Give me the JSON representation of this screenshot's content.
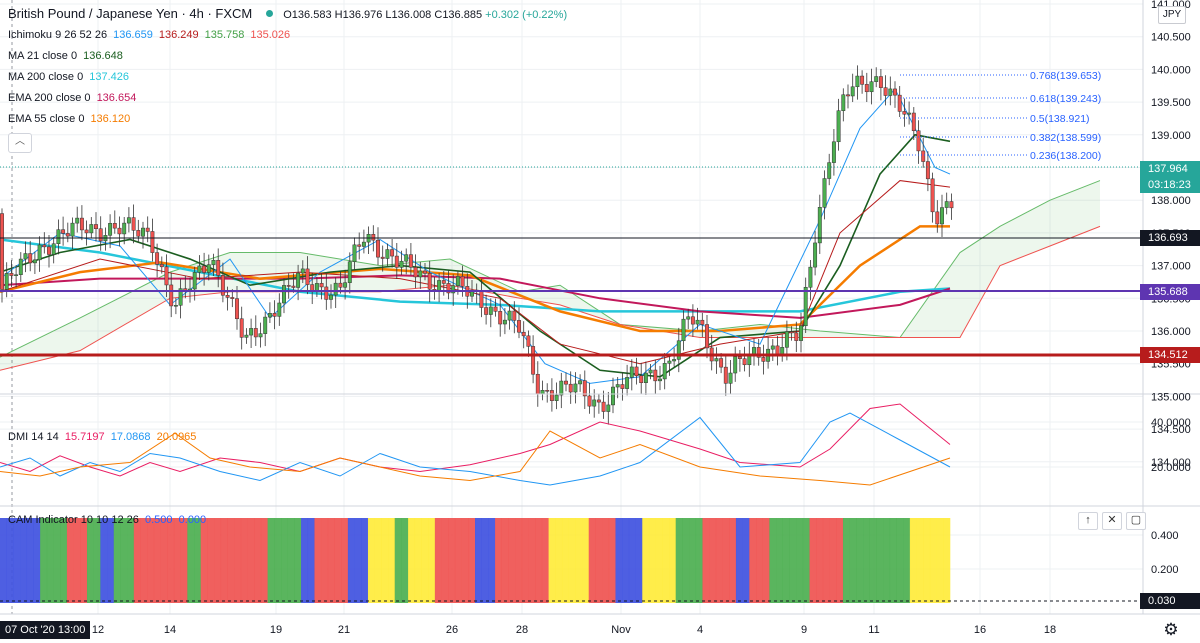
{
  "header": {
    "symbol": "British Pound / Japanese Yen · 4h · FXCM",
    "open": "O136.583",
    "high": "H136.976",
    "low": "L136.008",
    "close": "C136.885",
    "change": "+0.302 (+0.22%)"
  },
  "indicators": [
    {
      "name": "Ichimoku 9 26 52 26",
      "values": [
        {
          "v": "136.659",
          "color": "#2196f3"
        },
        {
          "v": "136.249",
          "color": "#b71c1c"
        },
        {
          "v": "135.758",
          "color": "#43a047"
        },
        {
          "v": "135.026",
          "color": "#ef5350"
        }
      ]
    },
    {
      "name": "MA 21 close 0",
      "values": [
        {
          "v": "136.648",
          "color": "#1b5e20"
        }
      ]
    },
    {
      "name": "MA 200 close 0",
      "values": [
        {
          "v": "137.426",
          "color": "#26c6da"
        }
      ]
    },
    {
      "name": "EMA 200 close 0",
      "values": [
        {
          "v": "136.654",
          "color": "#c2185b"
        }
      ]
    },
    {
      "name": "EMA 55 close 0",
      "values": [
        {
          "v": "136.120",
          "color": "#f57c00"
        }
      ]
    }
  ],
  "price_axis": {
    "currency": "JPY",
    "ticks": [
      "141.000",
      "140.500",
      "140.000",
      "139.500",
      "139.000",
      "138.500",
      "138.000",
      "137.500",
      "137.000",
      "136.500",
      "136.000",
      "135.500",
      "135.000",
      "134.500",
      "134.000"
    ],
    "last_price": "137.964",
    "countdown": "03:18:23",
    "levels": [
      {
        "label": "136.693",
        "color": "#131722"
      },
      {
        "label": "135.688",
        "color": "#5e35b1"
      },
      {
        "label": "134.512",
        "color": "#b71c1c"
      }
    ]
  },
  "fibonacci": [
    "0.768(139.653)",
    "0.618(139.243)",
    "0.5(138.921)",
    "0.382(138.599)",
    "0.236(138.200)"
  ],
  "dmi": {
    "name": "DMI 14 14",
    "values": [
      {
        "v": "15.7197",
        "color": "#e91e63"
      },
      {
        "v": "17.0868",
        "color": "#2196f3"
      },
      {
        "v": "20.0965",
        "color": "#f57c00"
      }
    ],
    "ticks": [
      "40.0000",
      "20.0000"
    ]
  },
  "cam": {
    "name": "CAM Indicator 10 10 12 26",
    "values": [
      {
        "v": "0.500",
        "color": "#2962ff"
      },
      {
        "v": "0.000",
        "color": "#2962ff"
      }
    ],
    "ticks": [
      "0.400",
      "0.200"
    ],
    "last_value": "0.030",
    "colors": {
      "blue": "#3f51e0",
      "green": "#4caf50",
      "red": "#ef5350",
      "yellow": "#ffeb3b"
    }
  },
  "time_axis": {
    "labels": [
      "12",
      "14",
      "19",
      "21",
      "26",
      "28",
      "Nov",
      "4",
      "9",
      "11",
      "16",
      "18"
    ],
    "cursor_date": "07 Oct '20  13:00"
  }
}
